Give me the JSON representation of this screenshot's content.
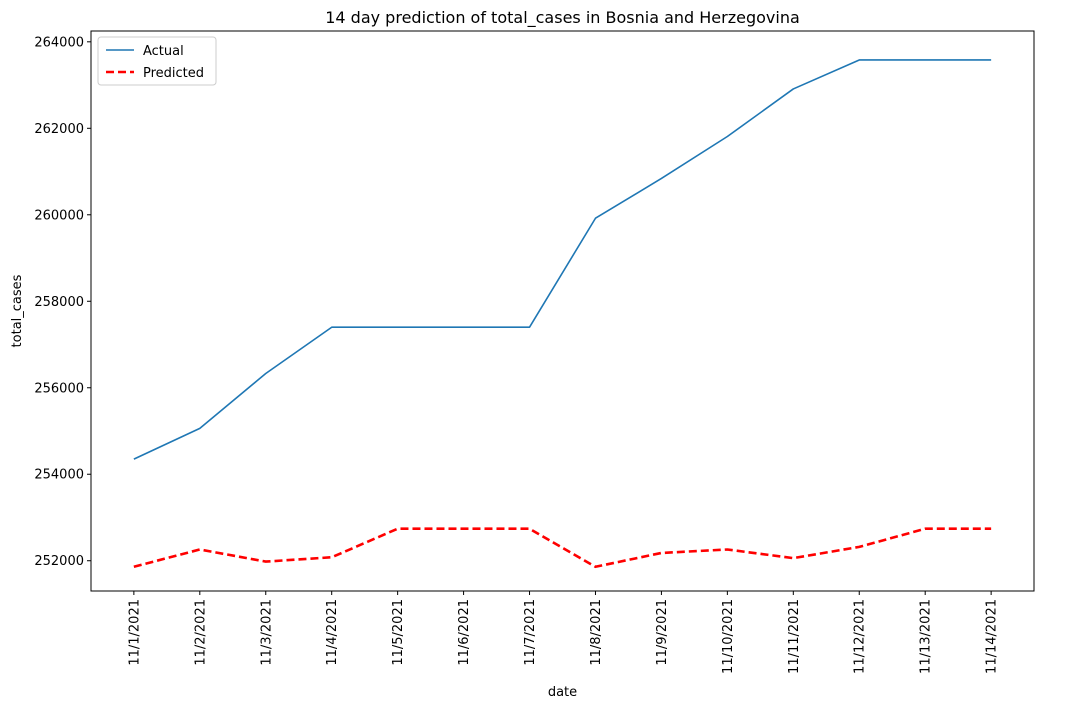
{
  "chart_data": {
    "type": "line",
    "title": "14 day prediction of total_cases in Bosnia and Herzegovina",
    "xlabel": "date",
    "ylabel": "total_cases",
    "categories": [
      "11/1/2021",
      "11/2/2021",
      "11/3/2021",
      "11/4/2021",
      "11/5/2021",
      "11/6/2021",
      "11/7/2021",
      "11/8/2021",
      "11/9/2021",
      "11/10/2021",
      "11/11/2021",
      "11/12/2021",
      "11/13/2021",
      "11/14/2021"
    ],
    "ylim": [
      251300,
      264250
    ],
    "yticks": [
      252000,
      254000,
      256000,
      258000,
      260000,
      262000,
      264000
    ],
    "grid": false,
    "legend": "upper-left",
    "series": [
      {
        "name": "Actual",
        "color": "#1f77b4",
        "style": "solid",
        "values": [
          254350,
          255060,
          256330,
          257400,
          257400,
          257400,
          257400,
          259920,
          260840,
          261810,
          262910,
          263580,
          263580,
          263580
        ]
      },
      {
        "name": "Predicted",
        "color": "#ff0000",
        "style": "dashed",
        "values": [
          251860,
          252260,
          251980,
          252080,
          252740,
          252740,
          252740,
          251860,
          252180,
          252260,
          252060,
          252320,
          252740,
          252740
        ]
      }
    ]
  }
}
